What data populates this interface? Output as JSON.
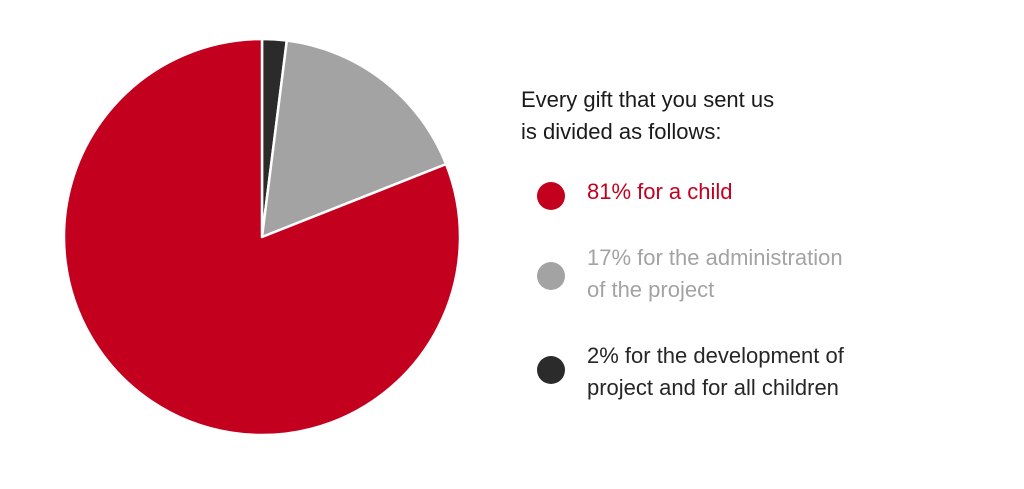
{
  "chart_data": {
    "type": "pie",
    "title": "Every gift that you sent us\nis divided as follows:",
    "slices": [
      {
        "label": "81% for a child",
        "value": 81,
        "color": "#c4001f"
      },
      {
        "label": "17% for the administration\nof the project",
        "value": 17,
        "color": "#a3a3a3"
      },
      {
        "label": "2% for the development of\nproject and for all children",
        "value": 2,
        "color": "#2b2b2b"
      }
    ],
    "legend_position": "right"
  },
  "legend_text_colors": [
    "#c4001f",
    "#a3a3a3",
    "#262626"
  ]
}
